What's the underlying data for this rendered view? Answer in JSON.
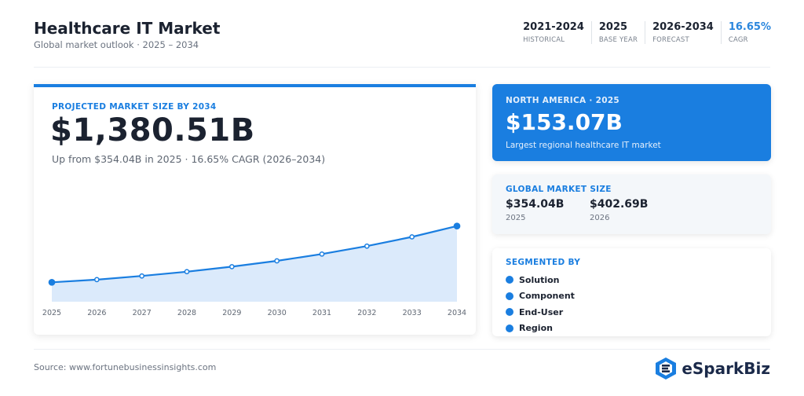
{
  "header": {
    "title": "Healthcare IT Market",
    "subtitle": "Global market outlook · 2025 – 2034",
    "stats": [
      {
        "value": "2021-2024",
        "label": "HISTORICAL"
      },
      {
        "value": "2025",
        "label": "BASE YEAR"
      },
      {
        "value": "2026-2034",
        "label": "FORECAST"
      },
      {
        "value": "16.65%",
        "label": "CAGR"
      }
    ]
  },
  "main_card": {
    "kicker": "PROJECTED MARKET SIZE BY 2034",
    "value": "$1,380.51B",
    "subtext": "Up from $354.04B in 2025 · 16.65% CAGR (2026–2034)"
  },
  "north_america": {
    "kicker": "NORTH AMERICA · 2025",
    "value": "$153.07B",
    "subtext": "Largest regional healthcare IT market"
  },
  "global_size": {
    "kicker": "GLOBAL MARKET SIZE",
    "items": [
      {
        "value": "$354.04B",
        "year": "2025"
      },
      {
        "value": "$402.69B",
        "year": "2026"
      }
    ]
  },
  "segments": {
    "kicker": "SEGMENTED BY",
    "items": [
      "Solution",
      "Component",
      "End-User",
      "Region"
    ]
  },
  "footer": {
    "source": "Source: www.fortunebusinessinsights.com",
    "brand": "eSparkBiz"
  },
  "colors": {
    "accent": "#1a7ee0",
    "area_fill": "#dbeafb",
    "dark": "#1b2230"
  },
  "chart_data": {
    "type": "area",
    "x": [
      "2025",
      "2026",
      "2027",
      "2028",
      "2029",
      "2030",
      "2031",
      "2032",
      "2033",
      "2034"
    ],
    "series": [
      {
        "values": [
          354.04,
          402.69,
          469.7,
          547.9,
          639.1,
          745.6,
          869.7,
          1014.5,
          1183.4,
          1380.51
        ]
      }
    ],
    "ylim": [
      0,
      2050
    ],
    "grid": false,
    "xlabel": "",
    "ylabel": ""
  }
}
